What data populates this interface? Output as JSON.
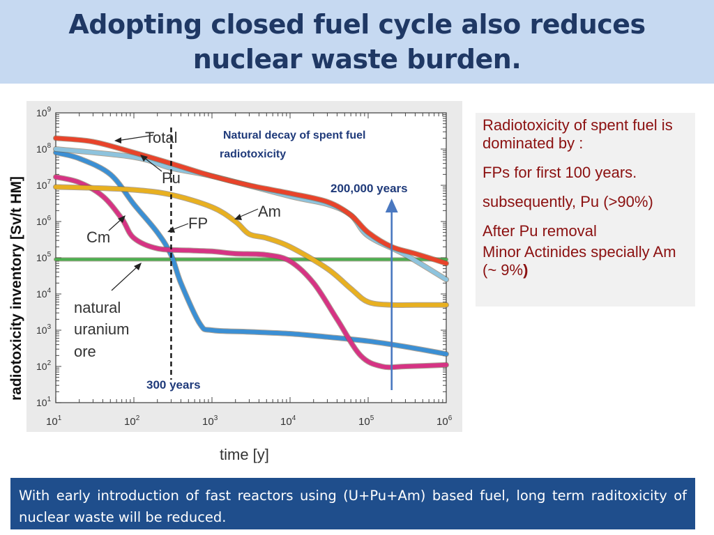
{
  "slide": {
    "title": "Adopting closed fuel cycle also reduces nuclear waste burden.",
    "info_lines": [
      "Radiotoxicity  of spent fuel is dominated by :",
      "FPs for first 100 years.",
      "subsequently, Pu (>90%)",
      "After Pu removal",
      "Minor Actinides specially Am (~ 9%"
    ],
    "info_close_paren": ")",
    "bottom_text": "With early introduction of fast reactors using (U+Pu+Am) based fuel, long term raditoxicity of nuclear waste will be reduced."
  },
  "chart_data": {
    "type": "line",
    "xlabel": "time [y]",
    "ylabel": "radiotoxicity inventory [Sv/t HM]",
    "xscale": "log",
    "yscale": "log",
    "xlim": [
      10,
      1000000
    ],
    "ylim": [
      10,
      1000000000
    ],
    "x_ticks": [
      {
        "value": 10,
        "base": "10",
        "exp": "1"
      },
      {
        "value": 100,
        "base": "10",
        "exp": "2"
      },
      {
        "value": 1000,
        "base": "10",
        "exp": "3"
      },
      {
        "value": 10000,
        "base": "10",
        "exp": "4"
      },
      {
        "value": 100000,
        "base": "10",
        "exp": "5"
      },
      {
        "value": 1000000,
        "base": "10",
        "exp": "6"
      }
    ],
    "y_ticks": [
      {
        "value": 10,
        "base": "10",
        "exp": "1"
      },
      {
        "value": 100,
        "base": "10",
        "exp": "2"
      },
      {
        "value": 1000,
        "base": "10",
        "exp": "3"
      },
      {
        "value": 10000,
        "base": "10",
        "exp": "4"
      },
      {
        "value": 100000,
        "base": "10",
        "exp": "5"
      },
      {
        "value": 1000000,
        "base": "10",
        "exp": "6"
      },
      {
        "value": 10000000,
        "base": "10",
        "exp": "7"
      },
      {
        "value": 100000000,
        "base": "10",
        "exp": "8"
      },
      {
        "value": 1000000000,
        "base": "10",
        "exp": "9"
      }
    ],
    "series": [
      {
        "key": "ore",
        "name": "natural uranium ore",
        "color": "#4caf50",
        "x": [
          10,
          1000000
        ],
        "y": [
          90000,
          90000
        ]
      },
      {
        "key": "fp",
        "name": "FP",
        "color": "#3b8fd4",
        "x": [
          10,
          20,
          50,
          100,
          200,
          300,
          400,
          700,
          1000,
          3000,
          10000,
          30000,
          100000,
          300000,
          1000000
        ],
        "y": [
          80000000,
          55000000,
          20000000,
          3000000,
          500000,
          120000,
          20000,
          1500,
          1000,
          900,
          800,
          650,
          500,
          350,
          220
        ]
      },
      {
        "key": "cm",
        "name": "Cm",
        "color": "#d63384",
        "x": [
          10,
          20,
          40,
          70,
          100,
          200,
          500,
          1000,
          2000,
          5000,
          10000,
          20000,
          40000,
          80000,
          150000,
          300000,
          1000000
        ],
        "y": [
          17000000,
          12000000,
          5000000,
          1200000,
          350000,
          180000,
          160000,
          150000,
          130000,
          120000,
          80000,
          20000,
          2000,
          200,
          100,
          100,
          110
        ]
      },
      {
        "key": "am",
        "name": "Am",
        "color": "#e8b020",
        "x": [
          10,
          30,
          100,
          300,
          1000,
          2000,
          3000,
          5000,
          10000,
          30000,
          60000,
          100000,
          200000,
          400000,
          1000000
        ],
        "y": [
          9000000,
          8500000,
          7500000,
          5500000,
          2500000,
          1000000,
          450000,
          350000,
          200000,
          50000,
          14000,
          6000,
          5000,
          5000,
          5000
        ]
      },
      {
        "key": "pu",
        "name": "Pu",
        "color": "#8ec3dd",
        "x": [
          10,
          100,
          300,
          1000,
          10000,
          30000,
          60000,
          100000,
          300000,
          1000000
        ],
        "y": [
          100000000,
          60000000,
          30000000,
          18000000,
          5000000,
          3000000,
          1500000,
          400000,
          120000,
          25000
        ]
      },
      {
        "key": "total",
        "name": "Total",
        "color": "#e8432a",
        "x": [
          10,
          30,
          100,
          300,
          1000,
          3000,
          10000,
          30000,
          60000,
          100000,
          200000,
          400000,
          1000000
        ],
        "y": [
          200000000,
          160000000,
          80000000,
          40000000,
          18000000,
          10000000,
          6000000,
          3500000,
          1500000,
          500000,
          200000,
          130000,
          70000
        ]
      }
    ],
    "curve_labels": [
      "Total",
      "Pu",
      "Am",
      "FP",
      "Cm",
      "natural",
      "uranium",
      "ore"
    ],
    "annotations": {
      "decay_title_line1": "Natural decay of spent fuel",
      "decay_title_line2": "radiotoxicity",
      "marker_300": "300 years",
      "marker_200k": "200,000 years"
    },
    "vline_x": 300,
    "arrow_x": 200000,
    "grid": false,
    "legend": "none"
  }
}
